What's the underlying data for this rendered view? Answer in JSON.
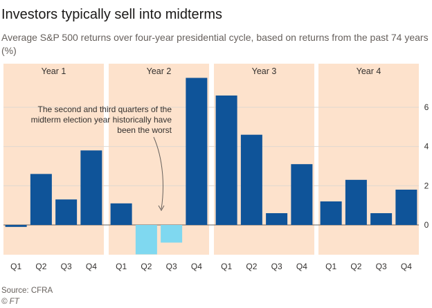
{
  "title": "Investors typically sell into midterms",
  "subtitle": "Average S&P 500 returns over four-year presidential cycle, based on returns from the past 74 years (%)",
  "source": "Source: CFRA",
  "copyright": "© FT",
  "chart_data": {
    "type": "bar",
    "groups": [
      {
        "label": "Year 1",
        "categories": [
          "Q1",
          "Q2",
          "Q3",
          "Q4"
        ],
        "values": [
          -0.1,
          2.6,
          1.3,
          3.8
        ]
      },
      {
        "label": "Year 2",
        "categories": [
          "Q1",
          "Q2",
          "Q3",
          "Q4"
        ],
        "values": [
          1.1,
          -1.5,
          -0.9,
          7.5
        ]
      },
      {
        "label": "Year 3",
        "categories": [
          "Q1",
          "Q2",
          "Q3",
          "Q4"
        ],
        "values": [
          6.6,
          4.6,
          0.6,
          3.1
        ]
      },
      {
        "label": "Year 4",
        "categories": [
          "Q1",
          "Q2",
          "Q3",
          "Q4"
        ],
        "values": [
          1.2,
          2.3,
          0.6,
          1.8
        ]
      }
    ],
    "highlighted": [
      [
        1,
        1
      ],
      [
        1,
        2
      ]
    ],
    "yticks": [
      0,
      2,
      4,
      6
    ],
    "ylim": [
      -1.6,
      8.3
    ],
    "grid": true,
    "annotation": {
      "lines": [
        "The second and third quarters of the",
        "midterm election year historically have",
        "been the worst"
      ]
    },
    "colors": {
      "bar": "#0f5499",
      "highlight": "#7fd8f0",
      "band": "#fde2cc",
      "grid": "#e0d8d0"
    }
  }
}
